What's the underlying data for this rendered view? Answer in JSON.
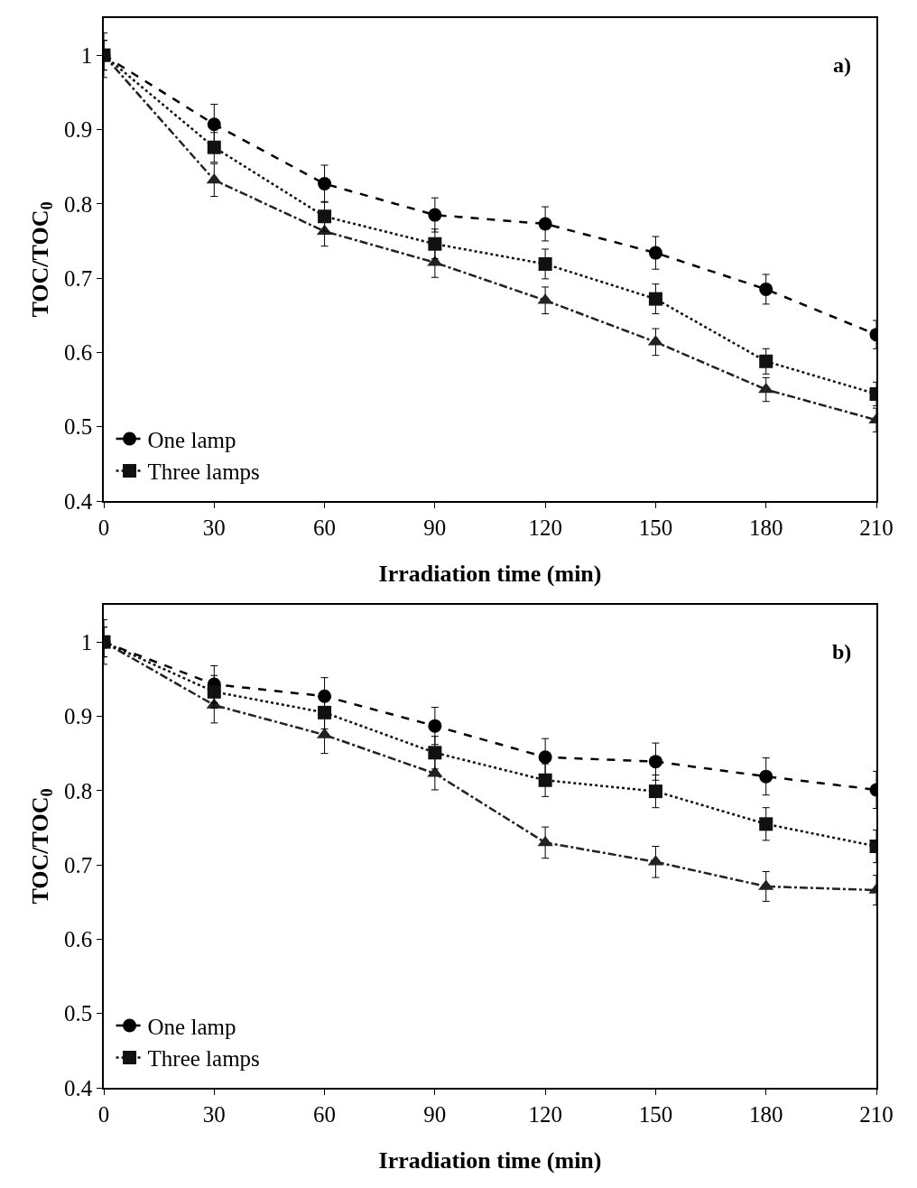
{
  "chart_data": [
    {
      "type": "line",
      "xlabel": "Irradiation time (min)",
      "ylabel": "TOC/TOC$_{0}$",
      "annotations": [
        "a)"
      ],
      "x": [
        0,
        30,
        60,
        90,
        120,
        150,
        180,
        210
      ],
      "xlim": [
        0,
        210
      ],
      "xticks": [
        0,
        30,
        60,
        90,
        120,
        150,
        180,
        210
      ],
      "ylim": [
        0.4,
        1.05
      ],
      "yticks": [
        0.4,
        0.5,
        0.6,
        0.7,
        0.8,
        0.9,
        1
      ],
      "grid": false,
      "legend": "bottom left",
      "series": [
        {
          "name": "One lamp",
          "color": "#000000",
          "marker": "circle",
          "line_style": "dashed",
          "values": [
            1,
            0.907,
            0.827,
            0.785,
            0.773,
            0.734,
            0.685,
            0.624
          ],
          "errors": [
            0.03,
            0.027,
            0.025,
            0.023,
            0.023,
            0.022,
            0.02,
            0.019
          ]
        },
        {
          "name": "Three lamps",
          "color": "#111111",
          "marker": "square",
          "line_style": "dotted",
          "values": [
            1,
            0.876,
            0.783,
            0.746,
            0.719,
            0.672,
            0.588,
            0.544
          ],
          "errors": [
            0.02,
            0.02,
            0.02,
            0.02,
            0.02,
            0.02,
            0.017,
            0.016
          ]
        },
        {
          "color": "#222222",
          "marker": "triangle",
          "line_style": "dashdot",
          "values": [
            1,
            0.832,
            0.763,
            0.721,
            0.67,
            0.614,
            0.55,
            0.509
          ],
          "errors": [
            0.02,
            0.022,
            0.02,
            0.02,
            0.018,
            0.018,
            0.016,
            0.016
          ]
        }
      ]
    },
    {
      "type": "line",
      "xlabel": "Irradiation time (min)",
      "ylabel": "TOC/TOC$_{0}$",
      "annotations": [
        "b)"
      ],
      "x": [
        0,
        30,
        60,
        90,
        120,
        150,
        180,
        210
      ],
      "xlim": [
        0,
        210
      ],
      "xticks": [
        0,
        30,
        60,
        90,
        120,
        150,
        180,
        210
      ],
      "ylim": [
        0.4,
        1.05
      ],
      "yticks": [
        0.4,
        0.5,
        0.6,
        0.7,
        0.8,
        0.9,
        1
      ],
      "grid": false,
      "legend": "bottom left",
      "series": [
        {
          "name": "One lamp",
          "color": "#000000",
          "marker": "circle",
          "line_style": "dashed",
          "values": [
            1,
            0.943,
            0.927,
            0.887,
            0.845,
            0.839,
            0.819,
            0.801
          ],
          "errors": [
            0.03,
            0.025,
            0.025,
            0.025,
            0.025,
            0.025,
            0.025,
            0.025
          ]
        },
        {
          "name": "Three lamps",
          "color": "#111111",
          "marker": "square",
          "line_style": "dotted",
          "values": [
            1,
            0.933,
            0.905,
            0.851,
            0.814,
            0.799,
            0.755,
            0.725
          ],
          "errors": [
            0.02,
            0.022,
            0.022,
            0.022,
            0.022,
            0.022,
            0.022,
            0.022
          ]
        },
        {
          "color": "#222222",
          "marker": "triangle",
          "line_style": "dashdot",
          "values": [
            1,
            0.915,
            0.875,
            0.823,
            0.73,
            0.704,
            0.671,
            0.666
          ],
          "errors": [
            0.02,
            0.024,
            0.025,
            0.022,
            0.021,
            0.021,
            0.02,
            0.02
          ]
        }
      ]
    }
  ]
}
